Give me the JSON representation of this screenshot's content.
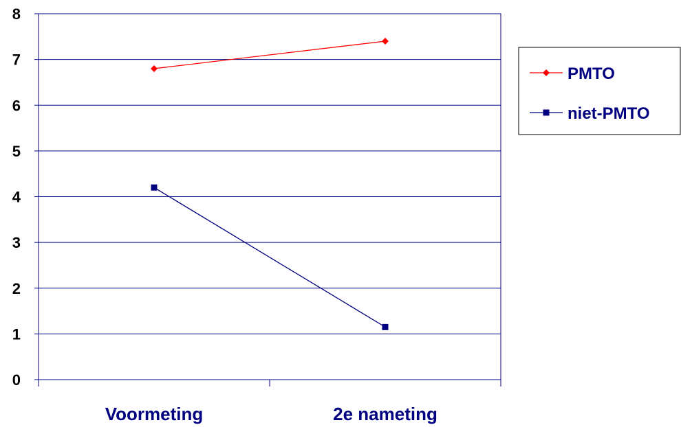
{
  "chart_data": {
    "type": "line",
    "categories": [
      "Voormeting",
      "2e nameting"
    ],
    "series": [
      {
        "name": "PMTO",
        "values": [
          6.8,
          7.4
        ],
        "color": "#ff0000",
        "marker": "diamond"
      },
      {
        "name": "niet-PMTO",
        "values": [
          4.2,
          1.15
        ],
        "color": "#000080",
        "marker": "square"
      }
    ],
    "ylim": [
      0,
      8
    ],
    "yticks": [
      0,
      1,
      2,
      3,
      4,
      5,
      6,
      7,
      8
    ],
    "grid": true,
    "legend": "right",
    "title": "",
    "xlabel": "",
    "ylabel": "",
    "axis_color": "#000080"
  }
}
